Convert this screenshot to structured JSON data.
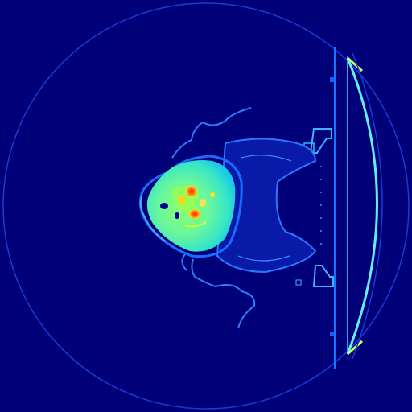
{
  "image": {
    "kind": "CT axial slice, false-color (jet colormap)",
    "background_color": "#000078",
    "palette": {
      "ring": "#1b3bd6",
      "table": "#19a6ff",
      "table_bright": "#5ff1ff",
      "hair": "#2d6bff",
      "soft_tissue": "#2a7bff",
      "head_outer": "#1fd7d9",
      "head_mid": "#4ff0b6",
      "head_inner": "#7eff7a",
      "hot": "#ff3a12",
      "warm": "#ffd21a",
      "air": "#000090"
    }
  }
}
